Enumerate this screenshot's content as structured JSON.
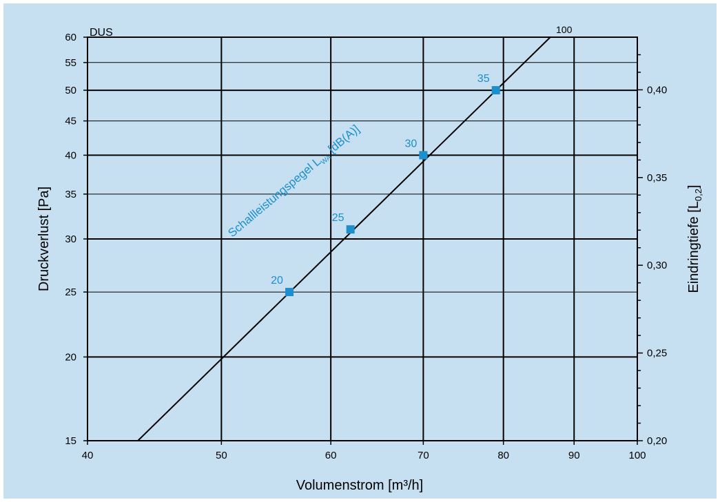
{
  "chart_data": {
    "type": "line",
    "title": "DUS",
    "xlabel": "Volumenstrom [m³/h]",
    "ylabel": "Druckverlust [Pa]",
    "y2label": "Eindringtiefe [L",
    "y2label_sub": "0,2",
    "y2label_end": "]",
    "x_scale": "log",
    "y_scale": "log",
    "xlim": [
      40,
      100
    ],
    "ylim": [
      15,
      60
    ],
    "y2lim": [
      0.2,
      0.43
    ],
    "x_ticks": [
      {
        "v": 40,
        "label": "40"
      },
      {
        "v": 50,
        "label": "50"
      },
      {
        "v": 60,
        "label": "60"
      },
      {
        "v": 70,
        "label": "70"
      },
      {
        "v": 80,
        "label": "80"
      },
      {
        "v": 90,
        "label": "90"
      },
      {
        "v": 100,
        "label": "100"
      }
    ],
    "y_ticks": [
      {
        "v": 15,
        "label": "15"
      },
      {
        "v": 20,
        "label": "20"
      },
      {
        "v": 25,
        "label": "25"
      },
      {
        "v": 30,
        "label": "30"
      },
      {
        "v": 35,
        "label": "35"
      },
      {
        "v": 40,
        "label": "40"
      },
      {
        "v": 45,
        "label": "45"
      },
      {
        "v": 50,
        "label": "50"
      },
      {
        "v": 55,
        "label": "55"
      },
      {
        "v": 60,
        "label": "60"
      }
    ],
    "y2_ticks": [
      {
        "v": 0.2,
        "label": "0,20"
      },
      {
        "v": 0.21,
        "label": ""
      },
      {
        "v": 0.22,
        "label": ""
      },
      {
        "v": 0.23,
        "label": ""
      },
      {
        "v": 0.24,
        "label": ""
      },
      {
        "v": 0.25,
        "label": "0,25"
      },
      {
        "v": 0.26,
        "label": ""
      },
      {
        "v": 0.27,
        "label": ""
      },
      {
        "v": 0.28,
        "label": ""
      },
      {
        "v": 0.29,
        "label": ""
      },
      {
        "v": 0.3,
        "label": "0,30"
      },
      {
        "v": 0.31,
        "label": ""
      },
      {
        "v": 0.32,
        "label": ""
      },
      {
        "v": 0.33,
        "label": ""
      },
      {
        "v": 0.34,
        "label": ""
      },
      {
        "v": 0.35,
        "label": "0,35"
      },
      {
        "v": 0.36,
        "label": ""
      },
      {
        "v": 0.37,
        "label": ""
      },
      {
        "v": 0.38,
        "label": ""
      },
      {
        "v": 0.39,
        "label": ""
      },
      {
        "v": 0.4,
        "label": "0,40"
      },
      {
        "v": 0.41,
        "label": ""
      },
      {
        "v": 0.42,
        "label": ""
      }
    ],
    "grid": true,
    "series": [
      {
        "name": "100",
        "x": [
          43.5,
          86.5
        ],
        "y": [
          15,
          60
        ],
        "color": "#000000"
      }
    ],
    "markers_label": "Schallleistungspegel L",
    "markers_label_sub": "WA",
    "markers_label_end": " [dB(A)]",
    "markers": [
      {
        "x": 56,
        "y": 25,
        "label": "20"
      },
      {
        "x": 62,
        "y": 31,
        "label": "25"
      },
      {
        "x": 70,
        "y": 40,
        "label": "30"
      },
      {
        "x": 79,
        "y": 50,
        "label": "35"
      }
    ],
    "colors": {
      "background": "#c6dff1",
      "line": "#000000",
      "marker": "#1c8fcd",
      "marker_text": "#1c8fcd"
    }
  }
}
